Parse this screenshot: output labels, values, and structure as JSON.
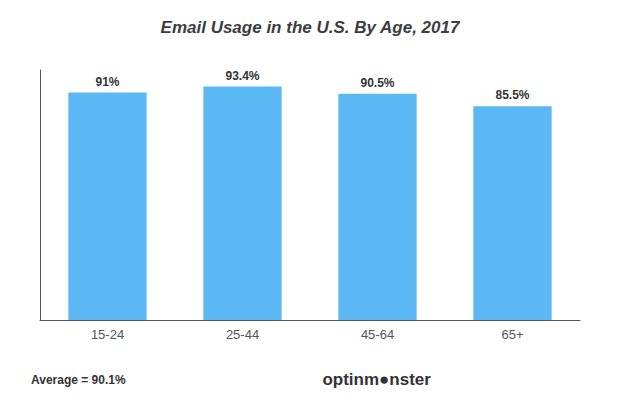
{
  "chart_data": {
    "type": "bar",
    "title": "Email Usage in the U.S. By Age, 2017",
    "categories": [
      "15-24",
      "25-44",
      "45-64",
      "65+"
    ],
    "values": [
      91.0,
      93.4,
      90.5,
      85.5
    ],
    "value_labels": [
      "91%",
      "93.4%",
      "90.5%",
      "85.5%"
    ],
    "data_labels": true,
    "color": "#5bb8f5",
    "ylim": [
      0,
      100
    ],
    "grid": false,
    "tick_labels": "x",
    "annotations": [
      "Average = 90.1%",
      "optinm●nster"
    ]
  }
}
